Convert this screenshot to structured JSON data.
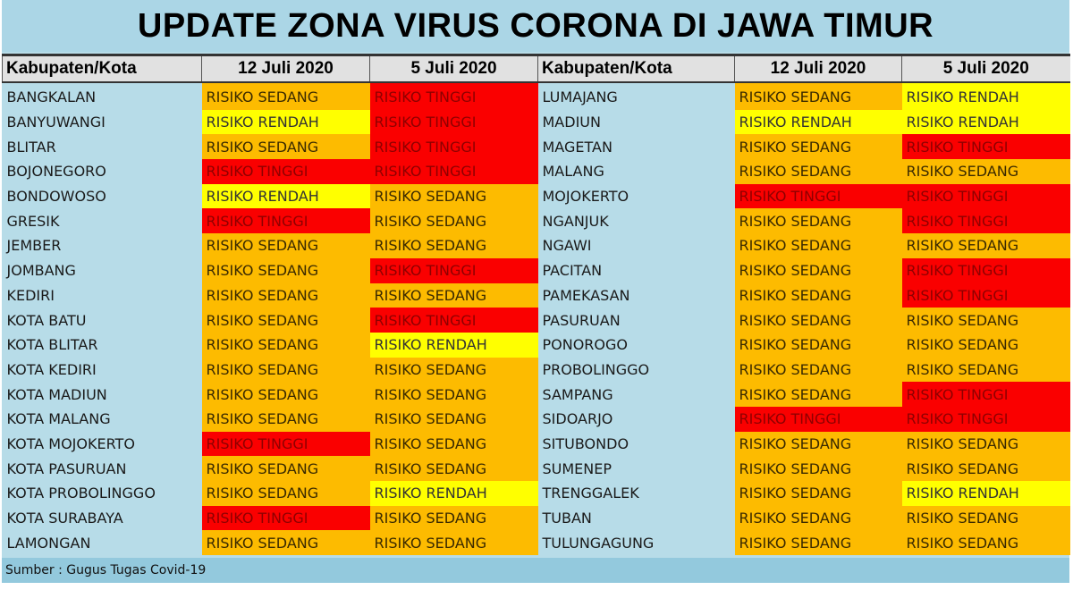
{
  "title": "UPDATE ZONA VIRUS CORONA DI JAWA TIMUR",
  "headers": [
    "Kabupaten/Kota",
    "12 Juli 2020",
    "5 Juli 2020",
    "Kabupaten/Kota",
    "12 Juli 2020",
    "5 Juli 2020"
  ],
  "colors": {
    "sedang": "#fdbb00",
    "tinggi": "#fa0000",
    "rendah": "#ffff00"
  },
  "rows": [
    [
      "BANGKALAN",
      "RISIKO SEDANG",
      "RISIKO TINGGI",
      "LUMAJANG",
      "RISIKO SEDANG",
      "RISIKO RENDAH"
    ],
    [
      "BANYUWANGI",
      "RISIKO RENDAH",
      "RISIKO TINGGI",
      "MADIUN",
      "RISIKO RENDAH",
      "RISIKO RENDAH"
    ],
    [
      "BLITAR",
      "RISIKO SEDANG",
      "RISIKO TINGGI",
      "MAGETAN",
      "RISIKO SEDANG",
      "RISIKO TINGGI"
    ],
    [
      "BOJONEGORO",
      "RISIKO TINGGI",
      "RISIKO TINGGI",
      "MALANG",
      "RISIKO SEDANG",
      "RISIKO SEDANG"
    ],
    [
      "BONDOWOSO",
      "RISIKO RENDAH",
      "RISIKO SEDANG",
      "MOJOKERTO",
      "RISIKO TINGGI",
      "RISIKO TINGGI"
    ],
    [
      "GRESIK",
      "RISIKO TINGGI",
      "RISIKO SEDANG",
      "NGANJUK",
      "RISIKO SEDANG",
      "RISIKO TINGGI"
    ],
    [
      "JEMBER",
      "RISIKO SEDANG",
      "RISIKO SEDANG",
      "NGAWI",
      "RISIKO SEDANG",
      "RISIKO SEDANG"
    ],
    [
      "JOMBANG",
      "RISIKO SEDANG",
      "RISIKO TINGGI",
      "PACITAN",
      "RISIKO SEDANG",
      "RISIKO TINGGI"
    ],
    [
      "KEDIRI",
      "RISIKO SEDANG",
      "RISIKO SEDANG",
      "PAMEKASAN",
      "RISIKO SEDANG",
      "RISIKO TINGGI"
    ],
    [
      "KOTA BATU",
      "RISIKO SEDANG",
      "RISIKO TINGGI",
      "PASURUAN",
      "RISIKO SEDANG",
      "RISIKO SEDANG"
    ],
    [
      "KOTA BLITAR",
      "RISIKO SEDANG",
      "RISIKO RENDAH",
      "PONOROGO",
      "RISIKO SEDANG",
      "RISIKO SEDANG"
    ],
    [
      "KOTA KEDIRI",
      "RISIKO SEDANG",
      "RISIKO SEDANG",
      "PROBOLINGGO",
      "RISIKO SEDANG",
      "RISIKO SEDANG"
    ],
    [
      "KOTA MADIUN",
      "RISIKO SEDANG",
      "RISIKO SEDANG",
      "SAMPANG",
      "RISIKO SEDANG",
      "RISIKO TINGGI"
    ],
    [
      "KOTA MALANG",
      "RISIKO SEDANG",
      "RISIKO SEDANG",
      "SIDOARJO",
      "RISIKO TINGGI",
      "RISIKO TINGGI"
    ],
    [
      "KOTA MOJOKERTO",
      "RISIKO TINGGI",
      "RISIKO SEDANG",
      "SITUBONDO",
      "RISIKO SEDANG",
      "RISIKO SEDANG"
    ],
    [
      "KOTA PASURUAN",
      "RISIKO SEDANG",
      "RISIKO SEDANG",
      "SUMENEP",
      "RISIKO SEDANG",
      "RISIKO SEDANG"
    ],
    [
      "KOTA PROBOLINGGO",
      "RISIKO SEDANG",
      "RISIKO RENDAH",
      "TRENGGALEK",
      "RISIKO SEDANG",
      "RISIKO RENDAH"
    ],
    [
      "KOTA SURABAYA",
      "RISIKO TINGGI",
      "RISIKO SEDANG",
      "TUBAN",
      "RISIKO SEDANG",
      "RISIKO SEDANG"
    ],
    [
      "LAMONGAN",
      "RISIKO SEDANG",
      "RISIKO SEDANG",
      "TULUNGAGUNG",
      "RISIKO SEDANG",
      "RISIKO SEDANG"
    ]
  ],
  "footer": "Sumber : Gugus Tugas Covid-19"
}
